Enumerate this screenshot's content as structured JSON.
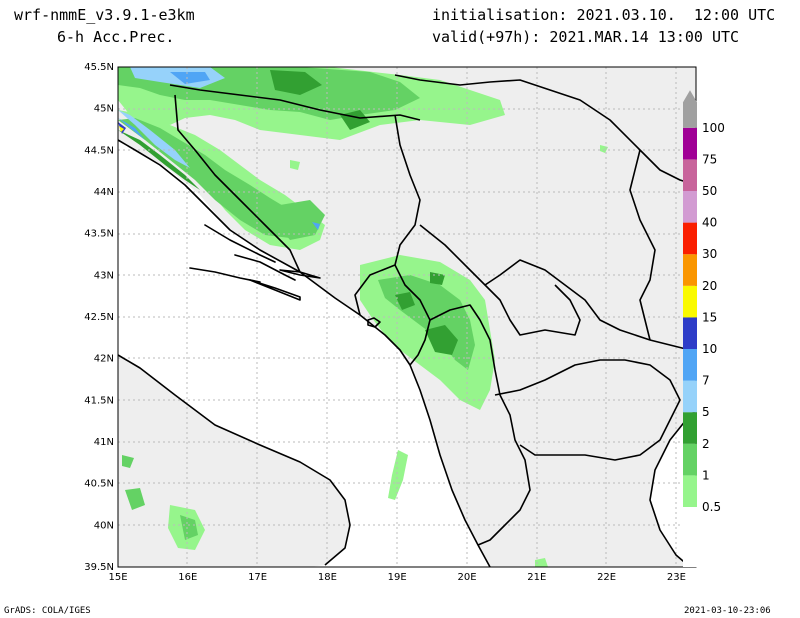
{
  "header": {
    "model": "wrf-nmmE_v3.9.1-e3km",
    "field": "6-h Acc.Prec.",
    "init_label": "initialisation:",
    "init_value": "2021.03.10.  12:00 UTC",
    "valid_label": "valid(+97h):",
    "valid_value": "2021.MAR.14 13:00 UTC"
  },
  "footer": {
    "credit": "GrADS: COLA/IGES",
    "timestamp": "2021-03-10-23:06"
  },
  "axes": {
    "lat_labels": [
      "45.5N",
      "45N",
      "44.5N",
      "44N",
      "43.5N",
      "43N",
      "42.5N",
      "42N",
      "41.5N",
      "41N",
      "40.5N",
      "40N",
      "39.5N"
    ],
    "lon_labels": [
      "15E",
      "16E",
      "17E",
      "18E",
      "19E",
      "20E",
      "21E",
      "22E",
      "23E"
    ]
  },
  "colorbar": {
    "levels": [
      "0.5",
      "1",
      "2",
      "5",
      "7",
      "10",
      "15",
      "20",
      "30",
      "40",
      "50",
      "75",
      "100"
    ],
    "colors": [
      "#96f58c",
      "#64d264",
      "#32a032",
      "#96d2fa",
      "#50a5f5",
      "#2d3cc8",
      "#fafa00",
      "#fa9600",
      "#fa1e00",
      "#d29bd2",
      "#c8649b",
      "#a00096",
      "#a0a0a0"
    ]
  },
  "map": {
    "ocean_color": "#ffffff",
    "land_color": "#eeeeee"
  }
}
